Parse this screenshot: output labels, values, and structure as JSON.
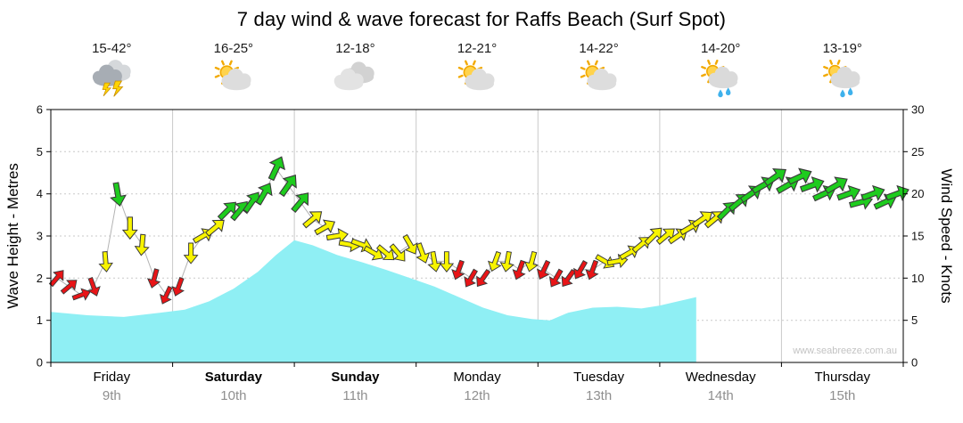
{
  "page": {
    "title": "7 day wind & wave forecast for Raffs Beach (Surf Spot)",
    "watermark": "www.seabreeze.com.au"
  },
  "axes": {
    "left_label": "Wave Height - Metres",
    "right_label": "Wind Speed - Knots",
    "left_ticks": [
      0,
      1,
      2,
      3,
      4,
      5,
      6
    ],
    "right_ticks": [
      0,
      5,
      10,
      15,
      20,
      25,
      30
    ]
  },
  "days": [
    {
      "name": "Friday",
      "date": "9th",
      "temp": "15-42°",
      "icon": "storm",
      "bold": false
    },
    {
      "name": "Saturday",
      "date": "10th",
      "temp": "16-25°",
      "icon": "partly-cloudy",
      "bold": true
    },
    {
      "name": "Sunday",
      "date": "11th",
      "temp": "12-18°",
      "icon": "cloudy",
      "bold": true
    },
    {
      "name": "Monday",
      "date": "12th",
      "temp": "12-21°",
      "icon": "partly-cloudy",
      "bold": false
    },
    {
      "name": "Tuesday",
      "date": "13th",
      "temp": "14-22°",
      "icon": "partly-cloudy",
      "bold": false
    },
    {
      "name": "Wednesday",
      "date": "14th",
      "temp": "14-20°",
      "icon": "showers",
      "bold": false
    },
    {
      "name": "Thursday",
      "date": "15th",
      "temp": "13-19°",
      "icon": "showers",
      "bold": false
    }
  ],
  "colors": {
    "wave_fill": "#8FEFF4",
    "arrow_red": "#E81417",
    "arrow_yellow": "#F8F400",
    "arrow_green": "#1ECC1E",
    "grid": "#c9c9c9",
    "axis": "#000000",
    "trend_line": "#b3b3b3"
  },
  "chart_data": {
    "type": "area",
    "title": "7 day wind & wave forecast for Raffs Beach (Surf Spot)",
    "x_unit": "days (0 = Friday 00:00, 7 = end of Thursday)",
    "x_range_days": [
      0,
      7
    ],
    "grid": true,
    "series": [
      {
        "name": "Wave Height",
        "type": "area",
        "unit": "m",
        "axis": "left",
        "ylim": [
          0,
          6
        ],
        "note": "cyan area, data ends abruptly early Wednesday",
        "points": [
          [
            0.0,
            1.2
          ],
          [
            0.3,
            1.12
          ],
          [
            0.6,
            1.08
          ],
          [
            0.9,
            1.18
          ],
          [
            1.1,
            1.25
          ],
          [
            1.3,
            1.45
          ],
          [
            1.5,
            1.75
          ],
          [
            1.7,
            2.15
          ],
          [
            1.85,
            2.55
          ],
          [
            2.0,
            2.9
          ],
          [
            2.15,
            2.78
          ],
          [
            2.35,
            2.55
          ],
          [
            2.55,
            2.38
          ],
          [
            2.75,
            2.2
          ],
          [
            2.95,
            2.0
          ],
          [
            3.15,
            1.8
          ],
          [
            3.35,
            1.55
          ],
          [
            3.55,
            1.3
          ],
          [
            3.75,
            1.12
          ],
          [
            3.95,
            1.03
          ],
          [
            4.1,
            1.0
          ],
          [
            4.25,
            1.18
          ],
          [
            4.45,
            1.3
          ],
          [
            4.65,
            1.32
          ],
          [
            4.85,
            1.28
          ],
          [
            5.0,
            1.35
          ],
          [
            5.15,
            1.45
          ],
          [
            5.3,
            1.55
          ]
        ]
      },
      {
        "name": "Wind Speed",
        "type": "wind-arrows",
        "unit": "knots",
        "axis": "right",
        "ylim": [
          0,
          30
        ],
        "color_rule": {
          "red": "< 12 kts",
          "yellow": "12-17 kts",
          "green": ">= 18 kts"
        },
        "point_format": [
          "t_days",
          "speed_knots",
          "arrow_rotation_deg"
        ],
        "points": [
          [
            0.05,
            10,
            40
          ],
          [
            0.15,
            9,
            50
          ],
          [
            0.25,
            8,
            70
          ],
          [
            0.35,
            9,
            160
          ],
          [
            0.45,
            12,
            175
          ],
          [
            0.55,
            20,
            170
          ],
          [
            0.65,
            16,
            180
          ],
          [
            0.75,
            14,
            185
          ],
          [
            0.85,
            10,
            195
          ],
          [
            0.95,
            8,
            205
          ],
          [
            1.05,
            9,
            200
          ],
          [
            1.15,
            13,
            180
          ],
          [
            1.25,
            15,
            60
          ],
          [
            1.35,
            16,
            50
          ],
          [
            1.45,
            18,
            45
          ],
          [
            1.55,
            18,
            40
          ],
          [
            1.65,
            19,
            35
          ],
          [
            1.75,
            20,
            30
          ],
          [
            1.85,
            23,
            25
          ],
          [
            1.95,
            21,
            35
          ],
          [
            2.05,
            19,
            40
          ],
          [
            2.15,
            17,
            50
          ],
          [
            2.25,
            16,
            60
          ],
          [
            2.35,
            15,
            80
          ],
          [
            2.45,
            14,
            100
          ],
          [
            2.55,
            14,
            110
          ],
          [
            2.65,
            13,
            120
          ],
          [
            2.75,
            13,
            130
          ],
          [
            2.85,
            13,
            140
          ],
          [
            2.95,
            14,
            150
          ],
          [
            3.05,
            13,
            160
          ],
          [
            3.15,
            12,
            170
          ],
          [
            3.25,
            12,
            180
          ],
          [
            3.35,
            11,
            200
          ],
          [
            3.45,
            10,
            210
          ],
          [
            3.55,
            10,
            215
          ],
          [
            3.65,
            12,
            200
          ],
          [
            3.75,
            12,
            190
          ],
          [
            3.85,
            11,
            200
          ],
          [
            3.95,
            12,
            195
          ],
          [
            4.05,
            11,
            205
          ],
          [
            4.15,
            10,
            210
          ],
          [
            4.25,
            10,
            215
          ],
          [
            4.35,
            11,
            210
          ],
          [
            4.45,
            11,
            200
          ],
          [
            4.55,
            12,
            120
          ],
          [
            4.65,
            12,
            80
          ],
          [
            4.75,
            13,
            60
          ],
          [
            4.85,
            14,
            50
          ],
          [
            4.95,
            15,
            45
          ],
          [
            5.05,
            15,
            50
          ],
          [
            5.15,
            15,
            55
          ],
          [
            5.25,
            16,
            60
          ],
          [
            5.35,
            17,
            55
          ],
          [
            5.45,
            17,
            50
          ],
          [
            5.55,
            18,
            45
          ],
          [
            5.65,
            19,
            50
          ],
          [
            5.75,
            20,
            55
          ],
          [
            5.85,
            21,
            60
          ],
          [
            5.95,
            22,
            55
          ],
          [
            6.05,
            21,
            60
          ],
          [
            6.15,
            22,
            65
          ],
          [
            6.25,
            21,
            70
          ],
          [
            6.35,
            20,
            65
          ],
          [
            6.45,
            21,
            60
          ],
          [
            6.55,
            20,
            70
          ],
          [
            6.65,
            19,
            75
          ],
          [
            6.75,
            20,
            70
          ],
          [
            6.85,
            19,
            65
          ],
          [
            6.95,
            20,
            70
          ]
        ]
      }
    ]
  }
}
